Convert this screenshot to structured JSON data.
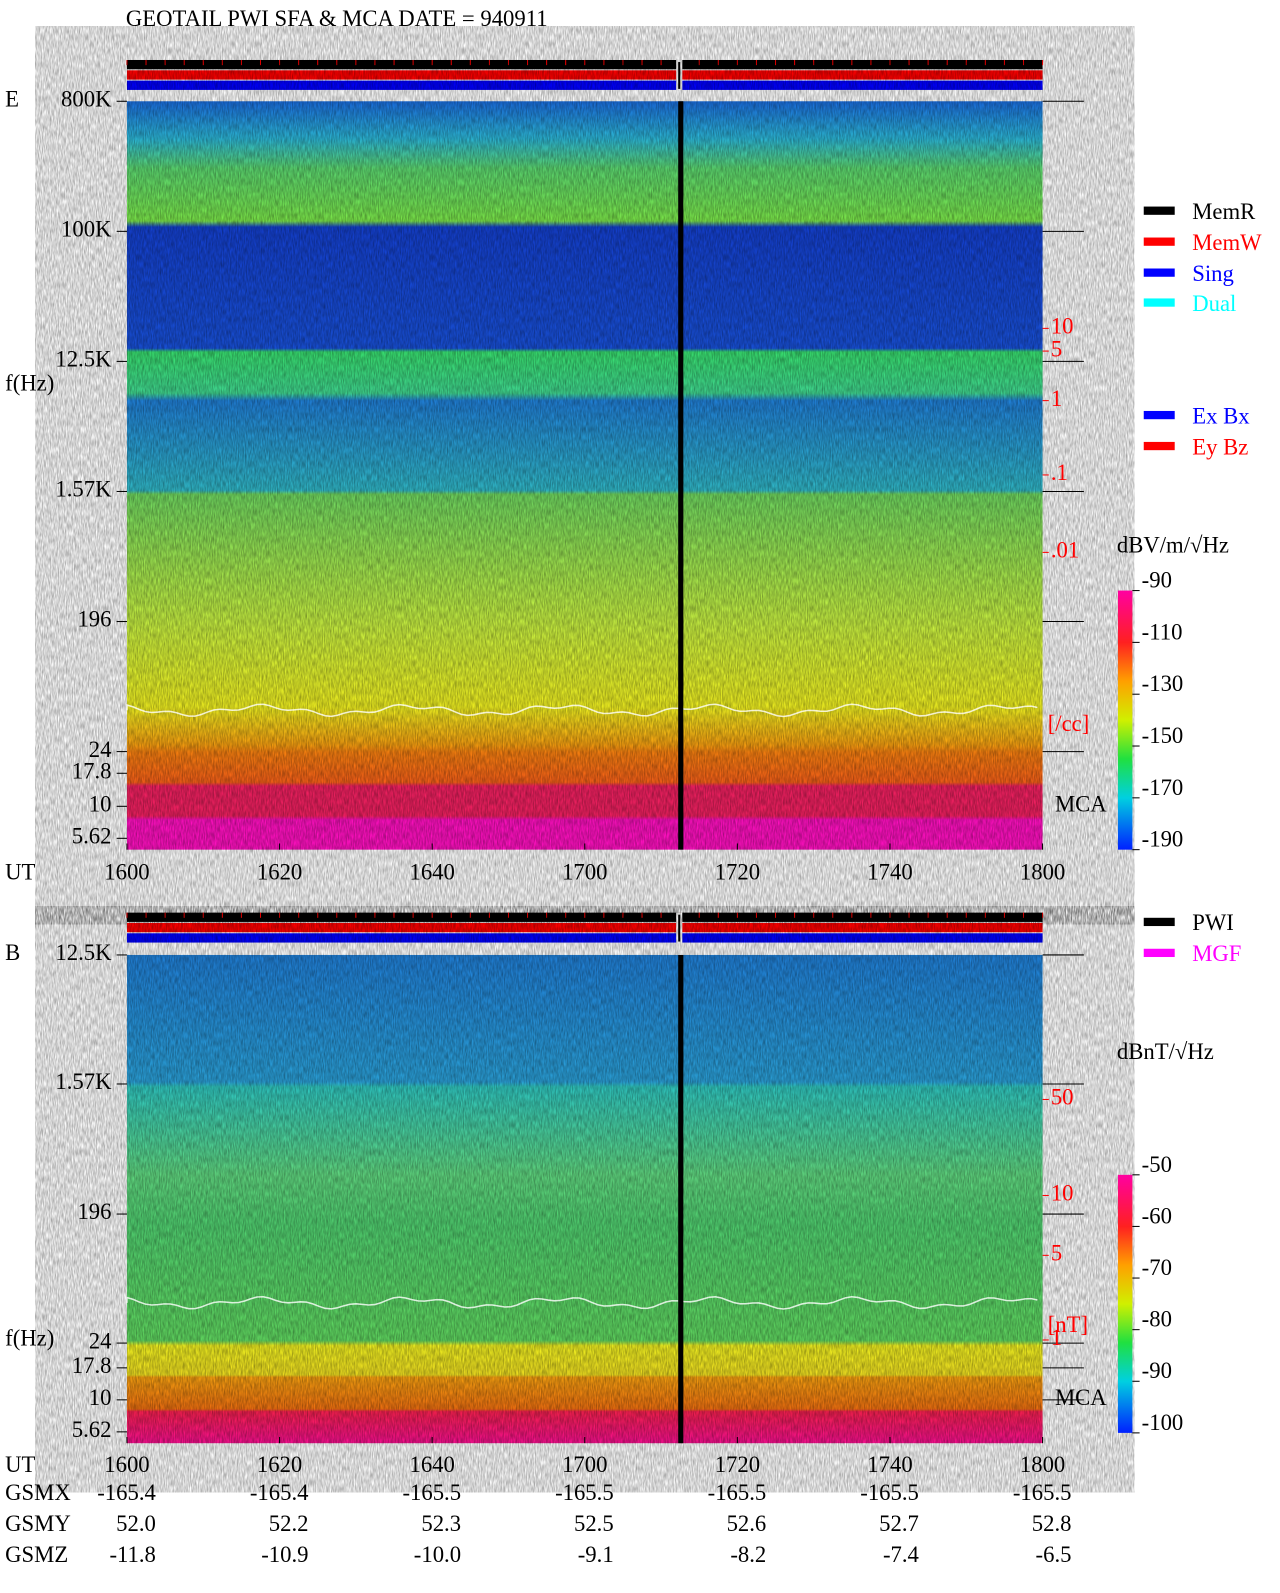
{
  "header": {
    "title": "GEOTAIL  PWI SFA & MCA   DATE = 940911"
  },
  "panels": [
    {
      "label": "E",
      "ylabel": "f(Hz)",
      "yticks": [
        "800K",
        "100K",
        "12.5K",
        "1.57K",
        "196",
        "24",
        "17.8",
        "10",
        "5.62"
      ],
      "xlabel": "UT",
      "xticks": [
        "1600",
        "1620",
        "1640",
        "1700",
        "1720",
        "1740",
        "1800"
      ],
      "right_ticks": [
        "10",
        "5",
        "1",
        ".1",
        ".01"
      ],
      "right_unit": "[/cc]",
      "mca": "MCA",
      "colorbar": {
        "unit": "dBV/m/√Hz",
        "ticks": [
          "-90",
          "-110",
          "-130",
          "-150",
          "-170",
          "-190"
        ]
      }
    },
    {
      "label": "B",
      "ylabel": "f(Hz)",
      "yticks": [
        "12.5K",
        "1.57K",
        "196",
        "24",
        "17.8",
        "10",
        "5.62"
      ],
      "xlabel": "UT",
      "xticks": [
        "1600",
        "1620",
        "1640",
        "1700",
        "1720",
        "1740",
        "1800"
      ],
      "right_ticks": [
        "50",
        "10",
        "5",
        "1"
      ],
      "right_unit": "[nT]",
      "mca": "MCA",
      "colorbar": {
        "unit": "dBnT/√Hz",
        "ticks": [
          "-50",
          "-60",
          "-70",
          "-80",
          "-90",
          "-100"
        ]
      }
    }
  ],
  "legend_mem": [
    {
      "label": "MemR",
      "color": "#000000"
    },
    {
      "label": "MemW",
      "color": "#ff0000"
    },
    {
      "label": "Sing",
      "color": "#0000ff"
    },
    {
      "label": "Dual",
      "color": "#00ffff"
    }
  ],
  "legend_comp": [
    {
      "label": "Ex Bx",
      "color": "#0000ff"
    },
    {
      "label": "Ey Bz",
      "color": "#ff0000"
    }
  ],
  "legend_src": [
    {
      "label": "PWI",
      "color": "#000000"
    },
    {
      "label": "MGF",
      "color": "#ff00ff"
    }
  ],
  "orbit": {
    "rows": [
      {
        "label": "GSMX",
        "values": [
          "-165.4",
          "-165.4",
          "-165.5",
          "-165.5",
          "-165.5",
          "-165.5",
          "-165.5"
        ]
      },
      {
        "label": "GSMY",
        "values": [
          "52.0",
          "52.2",
          "52.3",
          "52.5",
          "52.6",
          "52.7",
          "52.8"
        ]
      },
      {
        "label": "GSMZ",
        "values": [
          "-11.8",
          "-10.9",
          "-10.0",
          "-9.1",
          "-8.2",
          "-7.4",
          "-6.5"
        ]
      }
    ]
  }
}
